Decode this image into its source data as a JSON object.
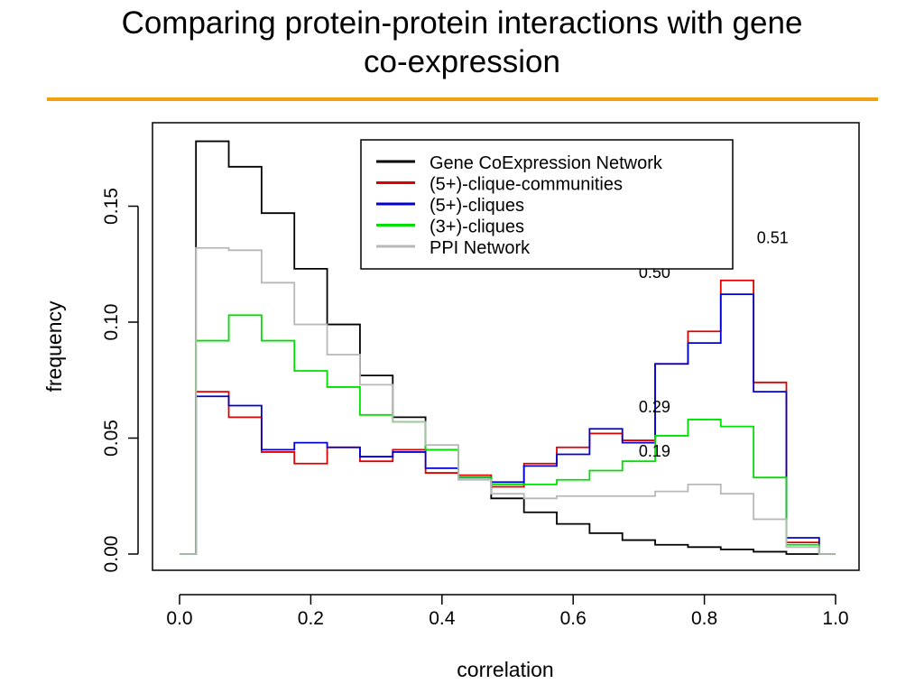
{
  "slide": {
    "title_line1": "Comparing protein-protein interactions with gene",
    "title_line2": "co-expression",
    "rule_color": "#f0a010"
  },
  "chart_data": {
    "type": "line",
    "subtype": "step-histogram",
    "title": "",
    "xlabel": "correlation",
    "ylabel": "frequency",
    "xlim": [
      0.0,
      1.0
    ],
    "ylim": [
      0.0,
      0.18
    ],
    "xticks": [
      "0.0",
      "0.2",
      "0.4",
      "0.6",
      "0.8",
      "1.0"
    ],
    "yticks": [
      "0.00",
      "0.05",
      "0.10",
      "0.15"
    ],
    "grid": false,
    "legend_placement": "top-center",
    "bin_edges": [
      0.0,
      0.025,
      0.075,
      0.125,
      0.175,
      0.225,
      0.275,
      0.325,
      0.375,
      0.425,
      0.475,
      0.525,
      0.575,
      0.625,
      0.675,
      0.725,
      0.775,
      0.825,
      0.875,
      0.925,
      0.975,
      1.0
    ],
    "series": [
      {
        "name": "Gene CoExpression Network",
        "color": "#000000",
        "values": [
          0.0,
          0.178,
          0.167,
          0.147,
          0.123,
          0.099,
          0.077,
          0.059,
          0.045,
          0.033,
          0.024,
          0.018,
          0.013,
          0.009,
          0.006,
          0.004,
          0.003,
          0.002,
          0.001,
          0.0,
          0.0
        ]
      },
      {
        "name": "(5+)-clique-communities",
        "color": "#e00000",
        "values": [
          0.0,
          0.07,
          0.059,
          0.044,
          0.039,
          0.046,
          0.04,
          0.045,
          0.035,
          0.034,
          0.029,
          0.039,
          0.046,
          0.052,
          0.049,
          0.082,
          0.096,
          0.118,
          0.074,
          0.005,
          0.0
        ]
      },
      {
        "name": "(5+)-cliques",
        "color": "#0000d0",
        "values": [
          0.0,
          0.068,
          0.064,
          0.045,
          0.048,
          0.046,
          0.042,
          0.044,
          0.037,
          0.033,
          0.031,
          0.038,
          0.043,
          0.054,
          0.048,
          0.082,
          0.091,
          0.112,
          0.07,
          0.007,
          0.0
        ]
      },
      {
        "name": "(3+)-cliques",
        "color": "#00e000",
        "values": [
          0.0,
          0.092,
          0.103,
          0.092,
          0.079,
          0.072,
          0.06,
          0.057,
          0.045,
          0.033,
          0.03,
          0.03,
          0.032,
          0.036,
          0.04,
          0.051,
          0.058,
          0.055,
          0.033,
          0.004,
          0.0
        ]
      },
      {
        "name": "PPI Network",
        "color": "#b8b8b8",
        "values": [
          0.0,
          0.132,
          0.131,
          0.117,
          0.099,
          0.086,
          0.073,
          0.057,
          0.047,
          0.032,
          0.026,
          0.024,
          0.025,
          0.025,
          0.025,
          0.027,
          0.03,
          0.026,
          0.015,
          0.003,
          0.0
        ]
      }
    ],
    "annotations": [
      {
        "text": "0.51",
        "x": 0.88,
        "y": 0.134
      },
      {
        "text": "0.50",
        "x": 0.7,
        "y": 0.119
      },
      {
        "text": "0.29",
        "x": 0.7,
        "y": 0.061
      },
      {
        "text": "0.19",
        "x": 0.7,
        "y": 0.042
      }
    ]
  }
}
